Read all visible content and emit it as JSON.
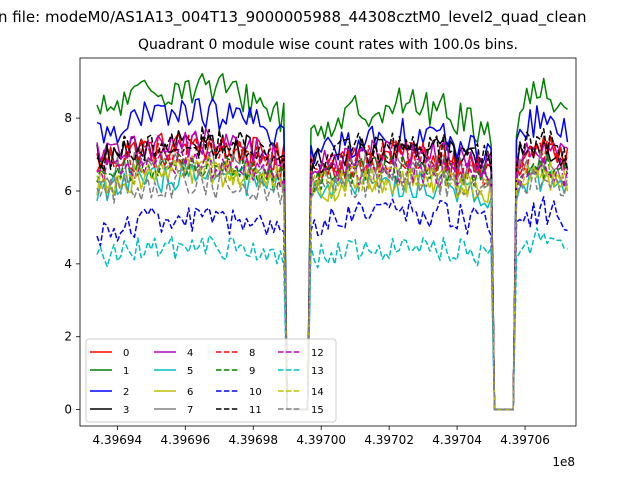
{
  "figure": {
    "suptitle": "n file: modeM0/AS1A13_004T13_9000005988_44308cztM0_level2_quad_clean",
    "title": "Quadrant 0 module wise count rates with 100.0s bins."
  },
  "chart_data": {
    "type": "line",
    "title": "Quadrant 0 module wise count rates with 100.0s bins.",
    "xlabel": "",
    "ylabel": "",
    "x_offset_label": "1e8",
    "xlim": [
      439692900,
      439707500
    ],
    "ylim": [
      -0.45,
      9.65
    ],
    "xticks": [
      439694000,
      439696000,
      439698000,
      439700000,
      439702000,
      439704000,
      439706000
    ],
    "xtick_labels": [
      "4.39694",
      "4.39696",
      "4.39698",
      "4.39700",
      "4.39702",
      "4.39704",
      "4.39706"
    ],
    "yticks": [
      0,
      2,
      4,
      6,
      8
    ],
    "ytick_labels": [
      "0",
      "2",
      "4",
      "6",
      "8"
    ],
    "grid": false,
    "legend_position": "lower-left",
    "gaps": [
      {
        "start": 439699000,
        "end": 439699600
      },
      {
        "start": 439705100,
        "end": 439705650
      }
    ],
    "data_segments": [
      {
        "start": 439693400,
        "end": 439698900
      },
      {
        "start": 439699700,
        "end": 439705000
      },
      {
        "start": 439705750,
        "end": 439707300
      }
    ],
    "series": [
      {
        "name": "0",
        "color": "#ff0000",
        "dash": "solid",
        "seg_means": [
          7.0,
          6.7,
          6.9
        ],
        "amp": 0.45,
        "trend": 0.4
      },
      {
        "name": "1",
        "color": "#008000",
        "dash": "solid",
        "seg_means": [
          8.4,
          7.9,
          8.3
        ],
        "amp": 0.5,
        "trend": 0.8
      },
      {
        "name": "2",
        "color": "#0000ff",
        "dash": "solid",
        "seg_means": [
          7.8,
          7.2,
          7.6
        ],
        "amp": 0.45,
        "trend": 0.6
      },
      {
        "name": "3",
        "color": "#000000",
        "dash": "solid",
        "seg_means": [
          7.1,
          6.9,
          7.0
        ],
        "amp": 0.4,
        "trend": 0.4
      },
      {
        "name": "4",
        "color": "#bf00bf",
        "dash": "solid",
        "seg_means": [
          7.1,
          6.8,
          7.0
        ],
        "amp": 0.4,
        "trend": 0.4
      },
      {
        "name": "5",
        "color": "#00bfbf",
        "dash": "solid",
        "seg_means": [
          6.2,
          6.0,
          6.2
        ],
        "amp": 0.4,
        "trend": 0.3
      },
      {
        "name": "6",
        "color": "#bfbf00",
        "dash": "solid",
        "seg_means": [
          6.3,
          6.1,
          6.2
        ],
        "amp": 0.4,
        "trend": 0.3
      },
      {
        "name": "7",
        "color": "#808080",
        "dash": "solid",
        "seg_means": [
          6.6,
          6.5,
          6.6
        ],
        "amp": 0.4,
        "trend": 0.3
      },
      {
        "name": "8",
        "color": "#ff0000",
        "dash": "dashed",
        "seg_means": [
          6.9,
          6.7,
          6.8
        ],
        "amp": 0.45,
        "trend": 0.4
      },
      {
        "name": "9",
        "color": "#008000",
        "dash": "dashed",
        "seg_means": [
          6.5,
          6.4,
          6.5
        ],
        "amp": 0.4,
        "trend": 0.3
      },
      {
        "name": "10",
        "color": "#0000ff",
        "dash": "dashed",
        "seg_means": [
          5.0,
          5.2,
          5.2
        ],
        "amp": 0.4,
        "trend": 0.4
      },
      {
        "name": "11",
        "color": "#000000",
        "dash": "dashed",
        "seg_means": [
          7.1,
          7.0,
          7.1
        ],
        "amp": 0.45,
        "trend": 0.4
      },
      {
        "name": "12",
        "color": "#bf00bf",
        "dash": "dashed",
        "seg_means": [
          6.6,
          6.4,
          6.5
        ],
        "amp": 0.4,
        "trend": 0.3
      },
      {
        "name": "13",
        "color": "#00bfbf",
        "dash": "dashed",
        "seg_means": [
          4.3,
          4.3,
          4.5
        ],
        "amp": 0.35,
        "trend": 0.3
      },
      {
        "name": "14",
        "color": "#bfbf00",
        "dash": "dashed",
        "seg_means": [
          6.4,
          6.2,
          6.3
        ],
        "amp": 0.4,
        "trend": 0.3
      },
      {
        "name": "15",
        "color": "#808080",
        "dash": "dashed",
        "seg_means": [
          6.0,
          6.1,
          6.1
        ],
        "amp": 0.4,
        "trend": 0.3
      }
    ]
  }
}
